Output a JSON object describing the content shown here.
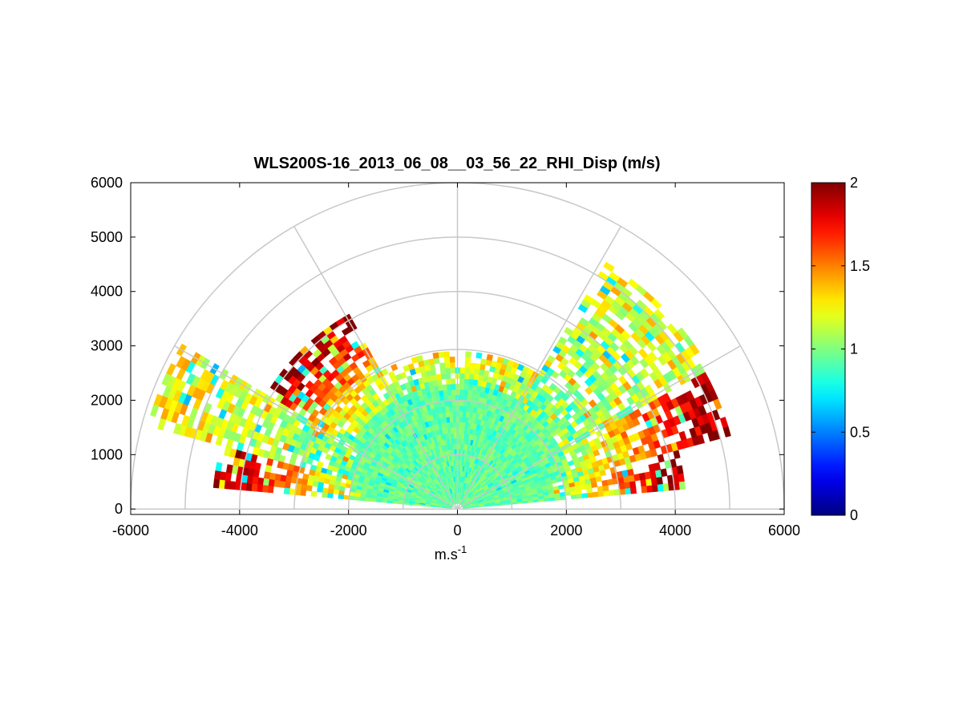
{
  "chart_data": {
    "type": "heatmap",
    "subtype": "polar-rhi",
    "title": "WLS200S-16_2013_06_08__03_56_22_RHI_Disp (m/s)",
    "xlabel": {
      "base": "m.s",
      "sup": "-1"
    },
    "ylabel": "",
    "xlim": [
      -6000,
      6000
    ],
    "ylim": [
      -100,
      6000
    ],
    "xticks": [
      {
        "value": -6000,
        "label": "-6000"
      },
      {
        "value": -4000,
        "label": "-4000"
      },
      {
        "value": -2000,
        "label": "-2000"
      },
      {
        "value": 0,
        "label": "0"
      },
      {
        "value": 2000,
        "label": "2000"
      },
      {
        "value": 4000,
        "label": "4000"
      },
      {
        "value": 6000,
        "label": "6000"
      }
    ],
    "yticks": [
      {
        "value": 0,
        "label": "0"
      },
      {
        "value": 1000,
        "label": "1000"
      },
      {
        "value": 2000,
        "label": "2000"
      },
      {
        "value": 3000,
        "label": "3000"
      },
      {
        "value": 4000,
        "label": "4000"
      },
      {
        "value": 5000,
        "label": "5000"
      },
      {
        "value": 6000,
        "label": "6000"
      }
    ],
    "polar_grid": {
      "rings": [
        1000,
        2000,
        3000,
        4000,
        5000,
        6000
      ],
      "spokes_deg": [
        0,
        30,
        60,
        90,
        120,
        150,
        180
      ]
    },
    "colorbar": {
      "colormap": "jet",
      "range": [
        0,
        2
      ],
      "ticks": [
        {
          "value": 0,
          "label": "0"
        },
        {
          "value": 0.5,
          "label": "0.5"
        },
        {
          "value": 1,
          "label": "1"
        },
        {
          "value": 1.5,
          "label": "1.5"
        },
        {
          "value": 2,
          "label": "2"
        }
      ]
    },
    "scan": {
      "elevation_range_deg": [
        5,
        175
      ],
      "gate_length_m": 100,
      "beam_width_deg": 2,
      "sectors": [
        {
          "from_deg": 5,
          "to_deg": 15,
          "max_range_m": 4200,
          "core_m": 1700,
          "edge_value": 1.95
        },
        {
          "from_deg": 15,
          "to_deg": 30,
          "max_range_m": 5200,
          "core_m": 2000,
          "edge_value": 1.95
        },
        {
          "from_deg": 30,
          "to_deg": 60,
          "max_range_m": 5300,
          "core_m": 2100,
          "edge_value": 1.2
        },
        {
          "from_deg": 60,
          "to_deg": 120,
          "max_range_m": 2900,
          "core_m": 2200,
          "edge_value": 1.3
        },
        {
          "from_deg": 120,
          "to_deg": 150,
          "max_range_m": 4100,
          "core_m": 2200,
          "edge_value": 1.95
        },
        {
          "from_deg": 150,
          "to_deg": 165,
          "max_range_m": 5900,
          "core_m": 2000,
          "edge_value": 1.25
        },
        {
          "from_deg": 165,
          "to_deg": 175,
          "max_range_m": 4500,
          "core_m": 1700,
          "edge_value": 1.95
        }
      ]
    }
  }
}
